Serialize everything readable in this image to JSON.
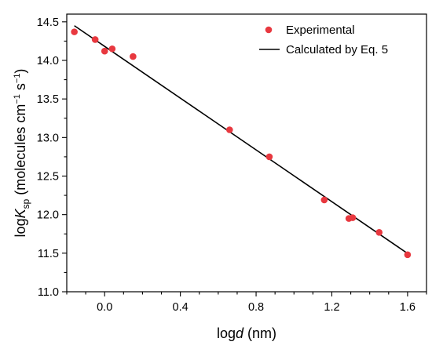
{
  "chart_data": {
    "type": "scatter",
    "xlabel": {
      "prefix": "log",
      "var": "d",
      "suffix": " (nm)"
    },
    "ylabel": {
      "prefix": "log",
      "var": "K",
      "sub": "sp",
      "suffix": " (molecules cm",
      "exp1": "−1",
      "mid": " s",
      "exp2": "−1",
      "end": ")"
    },
    "xlim": [
      -0.2,
      1.7
    ],
    "ylim": [
      11.0,
      14.6
    ],
    "xticks": [
      {
        "value": 0.0,
        "label": "0.0"
      },
      {
        "value": 0.4,
        "label": "0.4"
      },
      {
        "value": 0.8,
        "label": "0.8"
      },
      {
        "value": 1.2,
        "label": "1.2"
      },
      {
        "value": 1.6,
        "label": "1.6"
      }
    ],
    "yticks": [
      {
        "value": 11.0,
        "label": "11.0"
      },
      {
        "value": 11.5,
        "label": "11.5"
      },
      {
        "value": 12.0,
        "label": "12.0"
      },
      {
        "value": 12.5,
        "label": "12.5"
      },
      {
        "value": 13.0,
        "label": "13.0"
      },
      {
        "value": 13.5,
        "label": "13.5"
      },
      {
        "value": 14.0,
        "label": "14.0"
      },
      {
        "value": 14.5,
        "label": "14.5"
      }
    ],
    "grid": false,
    "legend_position": "top-right",
    "series": [
      {
        "name": "Experimental",
        "kind": "scatter",
        "color": "#e8383f",
        "x": [
          -0.16,
          -0.05,
          0.0,
          0.04,
          0.15,
          0.66,
          0.87,
          1.16,
          1.29,
          1.31,
          1.45,
          1.6
        ],
        "y": [
          14.37,
          14.27,
          14.12,
          14.15,
          14.05,
          13.1,
          12.75,
          12.19,
          11.95,
          11.96,
          11.77,
          11.48
        ]
      },
      {
        "name": "Calculated by Eq. 5",
        "kind": "line",
        "color": "#000000",
        "x": [
          -0.16,
          1.61
        ],
        "y": [
          14.45,
          11.48
        ]
      }
    ]
  }
}
